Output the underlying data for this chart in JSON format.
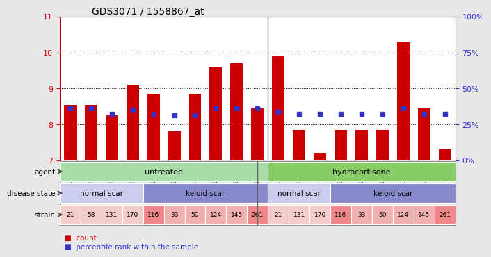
{
  "title": "GDS3071 / 1558867_at",
  "samples": [
    "GSM194118",
    "GSM194120",
    "GSM194122",
    "GSM194119",
    "GSM194121",
    "GSM194112",
    "GSM194113",
    "GSM194111",
    "GSM194109",
    "GSM194110",
    "GSM194117",
    "GSM194115",
    "GSM194116",
    "GSM194114",
    "GSM194104",
    "GSM194105",
    "GSM194108",
    "GSM194106",
    "GSM194107"
  ],
  "bar_values": [
    8.55,
    8.55,
    8.25,
    9.1,
    8.85,
    7.8,
    8.85,
    9.6,
    9.7,
    8.45,
    9.9,
    7.85,
    7.2,
    7.85,
    7.85,
    7.85,
    10.3,
    8.45,
    7.3
  ],
  "dot_values": [
    8.45,
    8.45,
    8.3,
    8.4,
    8.3,
    8.25,
    8.25,
    8.45,
    8.45,
    8.45,
    8.35,
    8.3,
    8.3,
    8.3,
    8.3,
    8.3,
    8.45,
    8.3,
    8.3
  ],
  "y_min": 7,
  "y_max": 11,
  "y_ticks_left": [
    7,
    8,
    9,
    10,
    11
  ],
  "y_ticks_right": [
    0,
    25,
    50,
    75,
    100
  ],
  "bar_color": "#cc0000",
  "dot_color": "#3333cc",
  "agent_groups": [
    {
      "label": "untreated",
      "start": 0,
      "end": 10,
      "color": "#aaddaa"
    },
    {
      "label": "hydrocortisone",
      "start": 10,
      "end": 19,
      "color": "#88cc66"
    }
  ],
  "disease_groups": [
    {
      "label": "normal scar",
      "start": 0,
      "end": 4,
      "color": "#ccccee"
    },
    {
      "label": "keloid scar",
      "start": 4,
      "end": 10,
      "color": "#8888cc"
    },
    {
      "label": "normal scar",
      "start": 10,
      "end": 13,
      "color": "#ccccee"
    },
    {
      "label": "keloid scar",
      "start": 13,
      "end": 19,
      "color": "#8888cc"
    }
  ],
  "strain_values": [
    "21",
    "58",
    "131",
    "170",
    "116",
    "33",
    "50",
    "124",
    "145",
    "261",
    "21",
    "131",
    "170",
    "116",
    "33",
    "50",
    "124",
    "145",
    "261"
  ],
  "strain_colors": [
    "#f5cccc",
    "#f5cccc",
    "#f5cccc",
    "#f5cccc",
    "#ee8888",
    "#f0b0b0",
    "#f0b0b0",
    "#f0b0b0",
    "#f0b0b0",
    "#ee8888",
    "#f5cccc",
    "#f5cccc",
    "#f5cccc",
    "#ee8888",
    "#f0b0b0",
    "#f0b0b0",
    "#f0b0b0",
    "#f0b0b0",
    "#ee8888"
  ],
  "row_labels": [
    "agent",
    "disease state",
    "strain"
  ],
  "legend_bar_label": "count",
  "legend_dot_label": "percentile rank within the sample",
  "background_color": "#e8e8e8",
  "plot_bg_color": "#ffffff",
  "sep_color": "#666666"
}
